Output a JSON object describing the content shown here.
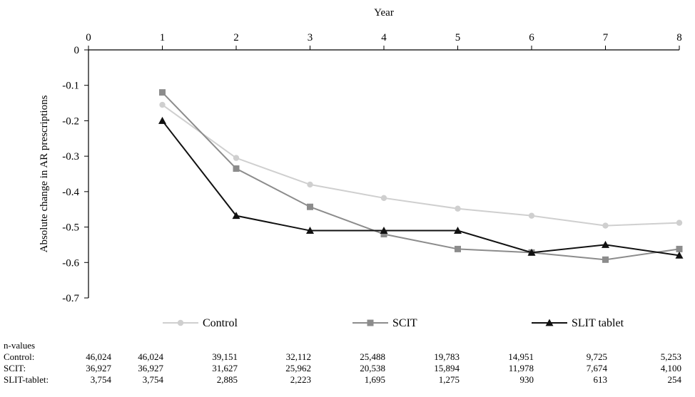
{
  "chart_data": {
    "type": "line",
    "xlabel": "Year",
    "ylabel": "Absolute change in AR prescriptions",
    "x_ticks": [
      "0",
      "1",
      "2",
      "3",
      "4",
      "5",
      "6",
      "7",
      "8"
    ],
    "y_ticks": [
      "0",
      "-0.1",
      "-0.2",
      "-0.3",
      "-0.4",
      "-0.5",
      "-0.6",
      "-0.7"
    ],
    "xlim": [
      0,
      8
    ],
    "ylim": [
      -0.7,
      0
    ],
    "x_axis_position": "top",
    "grid": false,
    "legend_position": "bottom-center",
    "series": [
      {
        "name": "Control",
        "color": "#cfcfcf",
        "marker": "circle",
        "x": [
          1,
          2,
          3,
          4,
          5,
          6,
          7,
          8
        ],
        "values": [
          -0.155,
          -0.305,
          -0.38,
          -0.418,
          -0.448,
          -0.468,
          -0.496,
          -0.488
        ]
      },
      {
        "name": "SCIT",
        "color": "#8c8c8c",
        "marker": "square",
        "x": [
          1,
          2,
          3,
          4,
          5,
          6,
          7,
          8
        ],
        "values": [
          -0.12,
          -0.335,
          -0.443,
          -0.52,
          -0.562,
          -0.572,
          -0.592,
          -0.562
        ]
      },
      {
        "name": "SLIT tablet",
        "color": "#111111",
        "marker": "triangle",
        "x": [
          1,
          2,
          3,
          4,
          5,
          6,
          7,
          8
        ],
        "values": [
          -0.2,
          -0.468,
          -0.51,
          -0.51,
          -0.51,
          -0.572,
          -0.55,
          -0.58
        ]
      }
    ]
  },
  "n_table": {
    "title": "n-values",
    "rows": [
      {
        "label": "Control:",
        "values": [
          "46,024",
          "46,024",
          "39,151",
          "32,112",
          "25,488",
          "19,783",
          "14,951",
          "9,725",
          "5,253"
        ]
      },
      {
        "label": "SCIT:",
        "values": [
          "36,927",
          "36,927",
          "31,627",
          "25,962",
          "20,538",
          "15,894",
          "11,978",
          "7,674",
          "4,100"
        ]
      },
      {
        "label": "SLIT-tablet:",
        "values": [
          "3,754",
          "3,754",
          "2,885",
          "2,223",
          "1,695",
          "1,275",
          "930",
          "613",
          "254"
        ]
      }
    ]
  }
}
